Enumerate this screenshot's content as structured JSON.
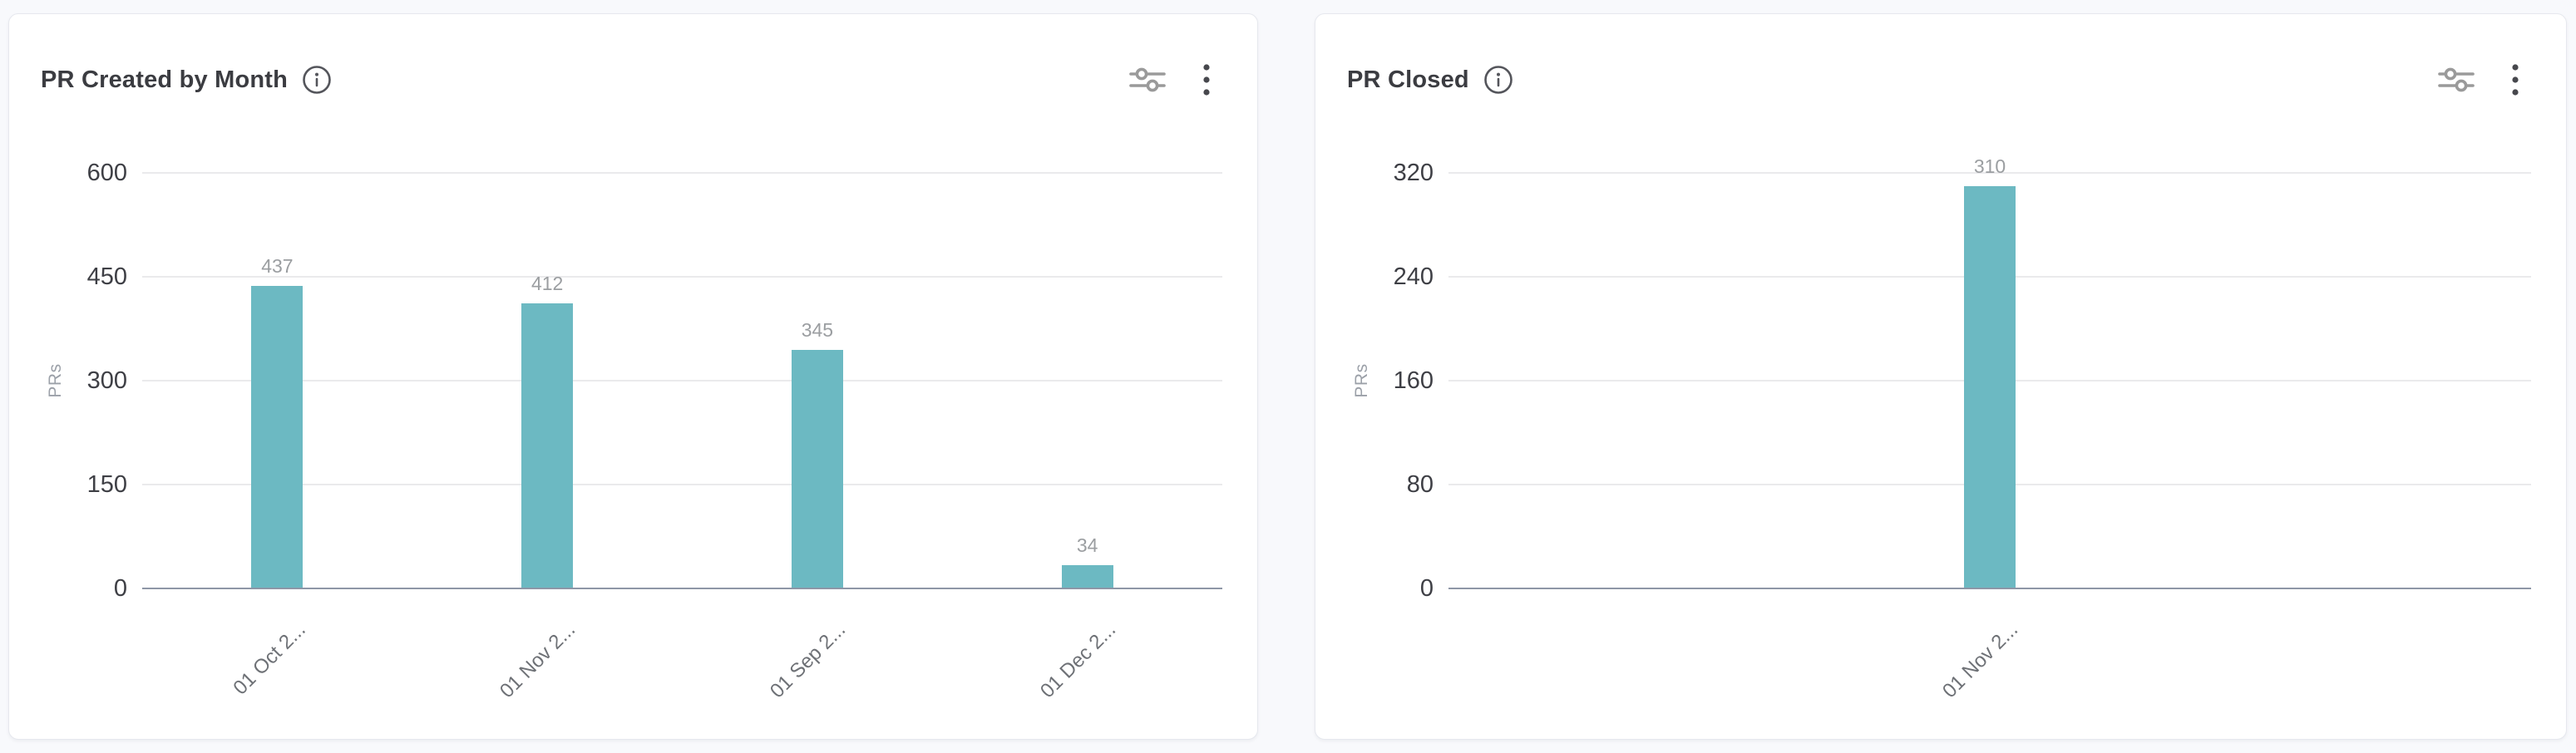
{
  "page": {
    "background": "#f8f9fc"
  },
  "colors": {
    "bar": "#6cb9c2",
    "axis_line": "#8e97a7",
    "gridline": "#eaeaec",
    "title_text": "#3b3c41",
    "tick_text": "#3e3f45",
    "muted_text": "#9b9ea1"
  },
  "toolbar": {
    "settings_icon": "sliders-icon",
    "menu_icon": "kebab-menu-icon",
    "info_icon": "info-icon"
  },
  "chart_data": [
    {
      "type": "bar",
      "title": "PR Created by Month",
      "categories": [
        "01 Oct 2...",
        "01 Nov 2...",
        "01 Sep 2...",
        "01 Dec 2..."
      ],
      "values": [
        437,
        412,
        345,
        34
      ],
      "xlabel": "",
      "ylabel": "PRs",
      "ylim": [
        0,
        600
      ],
      "yticks": [
        0,
        150,
        300,
        450,
        600
      ],
      "grid": true,
      "legend": "none",
      "value_labels": [
        437,
        412,
        345,
        34
      ]
    },
    {
      "type": "bar",
      "title": "PR Closed",
      "categories": [
        "01 Nov 2..."
      ],
      "values": [
        310
      ],
      "xlabel": "",
      "ylabel": "PRs",
      "ylim": [
        0,
        320
      ],
      "yticks": [
        0,
        80,
        160,
        240,
        320
      ],
      "grid": true,
      "legend": "none",
      "value_labels": [
        310
      ]
    }
  ]
}
